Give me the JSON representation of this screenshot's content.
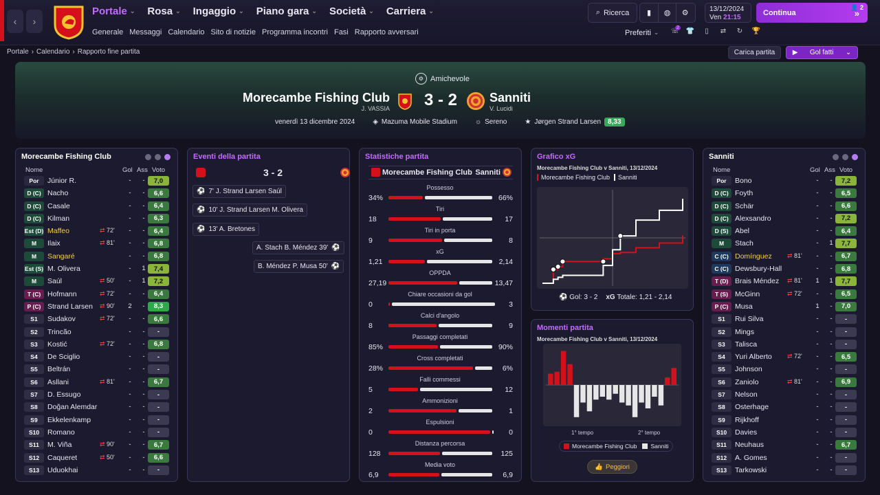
{
  "menu": [
    {
      "label": "Portale",
      "active": true
    },
    {
      "label": "Rosa"
    },
    {
      "label": "Ingaggio"
    },
    {
      "label": "Piano gara"
    },
    {
      "label": "Società"
    },
    {
      "label": "Carriera"
    }
  ],
  "submenu": [
    "Generale",
    "Messaggi",
    "Calendario",
    "Sito di notizie",
    "Programma incontri",
    "Fasi",
    "Rapporto avversari"
  ],
  "search_label": "Ricerca",
  "date": {
    "day": "13/12/2024",
    "weekday": "Ven",
    "time": "21:15"
  },
  "continue_label": "Continua",
  "continue_badge": "2",
  "favorites_label": "Preferiti",
  "notif_count": "2",
  "breadcrumb": [
    "Portale",
    "Calendario",
    "Rapporto fine partita"
  ],
  "load_match_label": "Carica partita",
  "goals_button_label": "Gol fatti",
  "match": {
    "competition": "Amichevole",
    "home_team": "Morecambe Fishing Club",
    "home_coach": "J. VASSIA",
    "away_team": "Sanniti",
    "away_coach": "V. Lucidi",
    "score": "3 - 2",
    "date": "venerdì 13 dicembre 2024",
    "stadium": "Mazuma Mobile Stadium",
    "weather": "Sereno",
    "mvp": "Jørgen Strand Larsen",
    "mvp_rating": "8,33"
  },
  "colors": {
    "accent": "#c46bff",
    "home": "#d4111b",
    "away": "#e6e6e6",
    "rating_green": "#3aa85a"
  },
  "home_panel": {
    "title": "Morecambe Fishing Club",
    "headers": {
      "name": "Nome",
      "goals": "Gol",
      "assists": "Ass",
      "rating": "Voto"
    },
    "players": [
      {
        "pos": "Por",
        "name": "Júnior R.",
        "sub": "",
        "g": "-",
        "a": "-",
        "v": "7,0",
        "cls": "great",
        "pc": "gk"
      },
      {
        "pos": "D (C)",
        "name": "Nacho",
        "sub": "",
        "g": "-",
        "a": "-",
        "v": "6,6",
        "cls": "",
        "pc": "def"
      },
      {
        "pos": "D (C)",
        "name": "Casale",
        "sub": "",
        "g": "-",
        "a": "-",
        "v": "6,4",
        "cls": "",
        "pc": "def"
      },
      {
        "pos": "D (C)",
        "name": "Kilman",
        "sub": "",
        "g": "-",
        "a": "-",
        "v": "6,3",
        "cls": "",
        "pc": "def"
      },
      {
        "pos": "Est (D)",
        "name": "Maffeo",
        "sub": "72'",
        "g": "-",
        "a": "-",
        "v": "6,4",
        "cls": "",
        "pc": "def",
        "yellow": true
      },
      {
        "pos": "M",
        "name": "Ilaix",
        "sub": "81'",
        "g": "-",
        "a": "-",
        "v": "6,8",
        "cls": "",
        "pc": "mid"
      },
      {
        "pos": "M",
        "name": "Sangaré",
        "sub": "",
        "g": "-",
        "a": "-",
        "v": "6,8",
        "cls": "",
        "pc": "mid",
        "yellow": true
      },
      {
        "pos": "Est (S)",
        "name": "M. Olivera",
        "sub": "",
        "g": "-",
        "a": "1",
        "v": "7,4",
        "cls": "great",
        "pc": "def"
      },
      {
        "pos": "M",
        "name": "Saúl",
        "sub": "50'",
        "g": "-",
        "a": "1",
        "v": "7,2",
        "cls": "great",
        "pc": "mid"
      },
      {
        "pos": "T (C)",
        "name": "Hofmann",
        "sub": "72'",
        "g": "-",
        "a": "-",
        "v": "6,4",
        "cls": "",
        "pc": "att"
      },
      {
        "pos": "P (C)",
        "name": "Strand Larsen",
        "sub": "90'",
        "g": "2",
        "a": "-",
        "v": "8,3",
        "cls": "best",
        "pc": "att"
      },
      {
        "pos": "S1",
        "name": "Sudakov",
        "sub": "72'",
        "g": "-",
        "a": "-",
        "v": "6,6",
        "cls": "",
        "pc": "sub"
      },
      {
        "pos": "S2",
        "name": "Trincão",
        "sub": "",
        "g": "-",
        "a": "-",
        "v": "-",
        "cls": "empty",
        "pc": "sub"
      },
      {
        "pos": "S3",
        "name": "Kostić",
        "sub": "72'",
        "g": "-",
        "a": "-",
        "v": "6,8",
        "cls": "",
        "pc": "sub"
      },
      {
        "pos": "S4",
        "name": "De Sciglio",
        "sub": "",
        "g": "-",
        "a": "-",
        "v": "-",
        "cls": "empty",
        "pc": "sub"
      },
      {
        "pos": "S5",
        "name": "Beltrán",
        "sub": "",
        "g": "-",
        "a": "-",
        "v": "-",
        "cls": "empty",
        "pc": "sub"
      },
      {
        "pos": "S6",
        "name": "Asllani",
        "sub": "81'",
        "g": "-",
        "a": "-",
        "v": "6,7",
        "cls": "",
        "pc": "sub"
      },
      {
        "pos": "S7",
        "name": "D. Essugo",
        "sub": "",
        "g": "-",
        "a": "-",
        "v": "-",
        "cls": "empty",
        "pc": "sub"
      },
      {
        "pos": "S8",
        "name": "Doğan Alemdar",
        "sub": "",
        "g": "-",
        "a": "-",
        "v": "-",
        "cls": "empty",
        "pc": "sub"
      },
      {
        "pos": "S9",
        "name": "Ekkelenkamp",
        "sub": "",
        "g": "-",
        "a": "-",
        "v": "-",
        "cls": "empty",
        "pc": "sub"
      },
      {
        "pos": "S10",
        "name": "Romano",
        "sub": "",
        "g": "-",
        "a": "-",
        "v": "-",
        "cls": "empty",
        "pc": "sub"
      },
      {
        "pos": "S11",
        "name": "M. Viña",
        "sub": "90'",
        "g": "-",
        "a": "-",
        "v": "6,7",
        "cls": "",
        "pc": "sub"
      },
      {
        "pos": "S12",
        "name": "Caqueret",
        "sub": "50'",
        "g": "-",
        "a": "-",
        "v": "6,6",
        "cls": "",
        "pc": "sub"
      },
      {
        "pos": "S13",
        "name": "Uduokhai",
        "sub": "",
        "g": "-",
        "a": "-",
        "v": "-",
        "cls": "empty",
        "pc": "sub"
      }
    ]
  },
  "away_panel": {
    "title": "Sanniti",
    "headers": {
      "name": "Nome",
      "goals": "Gol",
      "assists": "Ass",
      "rating": "Voto"
    },
    "players": [
      {
        "pos": "Por",
        "name": "Bono",
        "sub": "",
        "g": "-",
        "a": "-",
        "v": "7,2",
        "cls": "great",
        "pc": "gk"
      },
      {
        "pos": "D (C)",
        "name": "Foyth",
        "sub": "",
        "g": "-",
        "a": "-",
        "v": "6,5",
        "cls": "",
        "pc": "def"
      },
      {
        "pos": "D (C)",
        "name": "Schär",
        "sub": "",
        "g": "-",
        "a": "-",
        "v": "6,6",
        "cls": "",
        "pc": "def"
      },
      {
        "pos": "D (C)",
        "name": "Alexsandro",
        "sub": "",
        "g": "-",
        "a": "-",
        "v": "7,2",
        "cls": "great",
        "pc": "def"
      },
      {
        "pos": "D (S)",
        "name": "Abel",
        "sub": "",
        "g": "-",
        "a": "-",
        "v": "6,4",
        "cls": "",
        "pc": "def"
      },
      {
        "pos": "M",
        "name": "Stach",
        "sub": "",
        "g": "-",
        "a": "1",
        "v": "7,7",
        "cls": "great",
        "pc": "mid"
      },
      {
        "pos": "C (C)",
        "name": "Domínguez",
        "sub": "81'",
        "g": "-",
        "a": "-",
        "v": "6,7",
        "cls": "",
        "pc": "wing",
        "yellow": true
      },
      {
        "pos": "C (C)",
        "name": "Dewsbury-Hall",
        "sub": "",
        "g": "-",
        "a": "-",
        "v": "6,8",
        "cls": "",
        "pc": "wing"
      },
      {
        "pos": "T (D)",
        "name": "Brais Méndez",
        "sub": "81'",
        "g": "1",
        "a": "1",
        "v": "7,7",
        "cls": "great",
        "pc": "att"
      },
      {
        "pos": "T (S)",
        "name": "McGinn",
        "sub": "72'",
        "g": "-",
        "a": "-",
        "v": "6,5",
        "cls": "",
        "pc": "att"
      },
      {
        "pos": "P (C)",
        "name": "Musa",
        "sub": "",
        "g": "1",
        "a": "-",
        "v": "7,0",
        "cls": "",
        "pc": "att"
      },
      {
        "pos": "S1",
        "name": "Rui Silva",
        "sub": "",
        "g": "-",
        "a": "-",
        "v": "-",
        "cls": "empty",
        "pc": "sub"
      },
      {
        "pos": "S2",
        "name": "Mings",
        "sub": "",
        "g": "-",
        "a": "-",
        "v": "-",
        "cls": "empty",
        "pc": "sub"
      },
      {
        "pos": "S3",
        "name": "Talisca",
        "sub": "",
        "g": "-",
        "a": "-",
        "v": "-",
        "cls": "empty",
        "pc": "sub"
      },
      {
        "pos": "S4",
        "name": "Yuri Alberto",
        "sub": "72'",
        "g": "-",
        "a": "-",
        "v": "6,5",
        "cls": "",
        "pc": "sub"
      },
      {
        "pos": "S5",
        "name": "Johnson",
        "sub": "",
        "g": "-",
        "a": "-",
        "v": "-",
        "cls": "empty",
        "pc": "sub"
      },
      {
        "pos": "S6",
        "name": "Zaniolo",
        "sub": "81'",
        "g": "-",
        "a": "-",
        "v": "6,9",
        "cls": "",
        "pc": "sub"
      },
      {
        "pos": "S7",
        "name": "Nelson",
        "sub": "",
        "g": "-",
        "a": "-",
        "v": "-",
        "cls": "empty",
        "pc": "sub"
      },
      {
        "pos": "S8",
        "name": "Osterhage",
        "sub": "",
        "g": "-",
        "a": "-",
        "v": "-",
        "cls": "empty",
        "pc": "sub"
      },
      {
        "pos": "S9",
        "name": "Rijkhoff",
        "sub": "",
        "g": "-",
        "a": "-",
        "v": "-",
        "cls": "empty",
        "pc": "sub"
      },
      {
        "pos": "S10",
        "name": "Davies",
        "sub": "",
        "g": "-",
        "a": "-",
        "v": "-",
        "cls": "empty",
        "pc": "sub"
      },
      {
        "pos": "S11",
        "name": "Neuhaus",
        "sub": "",
        "g": "-",
        "a": "-",
        "v": "6,7",
        "cls": "",
        "pc": "sub"
      },
      {
        "pos": "S12",
        "name": "A. Gomes",
        "sub": "",
        "g": "-",
        "a": "-",
        "v": "-",
        "cls": "empty",
        "pc": "sub"
      },
      {
        "pos": "S13",
        "name": "Tarkowski",
        "sub": "",
        "g": "-",
        "a": "-",
        "v": "-",
        "cls": "empty",
        "pc": "sub"
      }
    ]
  },
  "events": {
    "title": "Eventi della partita",
    "score": "3 - 2",
    "items": [
      {
        "side": "home",
        "text": "7' J. Strand Larsen Saúl"
      },
      {
        "side": "home",
        "text": "10' J. Strand Larsen M. Olivera"
      },
      {
        "side": "home",
        "text": "13' A. Bretones"
      },
      {
        "side": "away",
        "text": "A. Stach B. Méndez 39'"
      },
      {
        "side": "away",
        "text": "B. Méndez P. Musa 50'"
      }
    ]
  },
  "stats": {
    "title": "Statistiche partita",
    "home": "Morecambe Fishing Club",
    "away": "Sanniti",
    "rows": [
      {
        "label": "Possesso",
        "h": "34%",
        "a": "66%",
        "hv": 34,
        "av": 66
      },
      {
        "label": "Tiri",
        "h": "18",
        "a": "17",
        "hv": 18,
        "av": 17
      },
      {
        "label": "Tiri in porta",
        "h": "9",
        "a": "8",
        "hv": 9,
        "av": 8
      },
      {
        "label": "xG",
        "h": "1,21",
        "a": "2,14",
        "hv": 1.21,
        "av": 2.14
      },
      {
        "label": "OPPDA",
        "h": "27,19",
        "a": "13,47",
        "hv": 27.19,
        "av": 13.47
      },
      {
        "label": "Chiare occasioni da gol",
        "h": "0",
        "a": "3",
        "hv": 0,
        "av": 3
      },
      {
        "label": "Calci d'angolo",
        "h": "8",
        "a": "9",
        "hv": 8,
        "av": 9
      },
      {
        "label": "Passaggi completati",
        "h": "85%",
        "a": "90%",
        "hv": 85,
        "av": 90
      },
      {
        "label": "Cross completati",
        "h": "28%",
        "a": "6%",
        "hv": 28,
        "av": 6
      },
      {
        "label": "Falli commessi",
        "h": "5",
        "a": "12",
        "hv": 5,
        "av": 12
      },
      {
        "label": "Ammonizioni",
        "h": "2",
        "a": "1",
        "hv": 2,
        "av": 1
      },
      {
        "label": "Espulsioni",
        "h": "0",
        "a": "0",
        "hv": 0,
        "av": 0
      },
      {
        "label": "Distanza percorsa",
        "h": "128",
        "a": "125",
        "hv": 128,
        "av": 125
      },
      {
        "label": "Media voto",
        "h": "6,9",
        "a": "6,9",
        "hv": 6.9,
        "av": 6.9
      }
    ]
  },
  "xg": {
    "title": "Grafico xG",
    "subtitle": "Morecambe Fishing Club v Sanniti, 13/12/2024",
    "legend_home": "Morecambe Fishing Club",
    "legend_away": "Sanniti",
    "goals_label": "Gol: 3 - 2",
    "total_label": "xG",
    "total_value": "Totale: 1,21 - 2,14"
  },
  "chart_data": [
    {
      "type": "line",
      "x": [
        0,
        7,
        10,
        13,
        39,
        45,
        50,
        60,
        75,
        90
      ],
      "series": [
        {
          "name": "Morecambe Fishing Club",
          "values": [
            0,
            0.35,
            0.42,
            0.55,
            0.62,
            0.75,
            0.78,
            0.9,
            1.02,
            1.21
          ]
        },
        {
          "name": "Sanniti",
          "values": [
            0,
            0.1,
            0.15,
            0.2,
            0.45,
            0.85,
            1.2,
            1.6,
            1.85,
            2.14
          ]
        }
      ],
      "ylim": [
        0,
        2.3
      ]
    },
    {
      "type": "bar",
      "series": [
        {
          "name": "Morecambe Fishing Club",
          "values": [
            0.3,
            0.35,
            0.9,
            0.55,
            0,
            0,
            0,
            0,
            0,
            0,
            0,
            0,
            0,
            0,
            0,
            0,
            0,
            0,
            0.2,
            0.45
          ]
        },
        {
          "name": "Sanniti",
          "values": [
            0,
            0,
            0,
            0,
            0.55,
            0.3,
            0.45,
            0.25,
            0.2,
            0.25,
            0.15,
            0.3,
            0.35,
            0.55,
            0.3,
            0.4,
            0.2,
            0.35,
            0,
            0
          ]
        }
      ]
    }
  ],
  "moments": {
    "title": "Momenti partita",
    "subtitle": "Morecambe Fishing Club v Sanniti, 13/12/2024",
    "first_half": "1° tempo",
    "second_half": "2° tempo",
    "legend_home": "Morecambe Fishing Club",
    "legend_away": "Sanniti",
    "worst_label": "Peggiori"
  }
}
